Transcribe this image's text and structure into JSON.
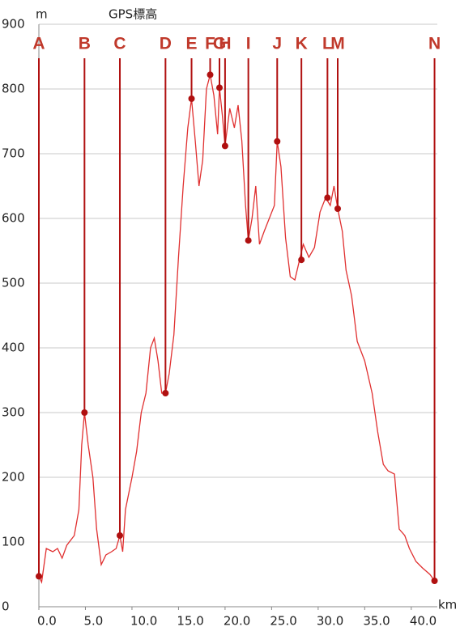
{
  "chart_data": {
    "type": "line",
    "title": "GPS標高",
    "y_label": "m",
    "x_label": "km",
    "xlim": [
      0,
      42.8
    ],
    "ylim": [
      0,
      900
    ],
    "xticks": [
      {
        "value": 0,
        "label": "0.0"
      },
      {
        "value": 5,
        "label": "5.0"
      },
      {
        "value": 10,
        "label": "10.0"
      },
      {
        "value": 15,
        "label": "15.0"
      },
      {
        "value": 20,
        "label": "20.0"
      },
      {
        "value": 25,
        "label": "25.0"
      },
      {
        "value": 30,
        "label": "30.0"
      },
      {
        "value": 35,
        "label": "35.0"
      },
      {
        "value": 40,
        "label": "40.0"
      }
    ],
    "yticks": [
      0,
      100,
      200,
      300,
      400,
      500,
      600,
      700,
      800,
      900
    ],
    "grid": true,
    "series": [
      {
        "color": "#e03030",
        "x": [
          0,
          0.3,
          0.8,
          1.5,
          2.0,
          2.5,
          3.0,
          3.8,
          4.3,
          4.6,
          4.9,
          5.3,
          5.8,
          6.2,
          6.7,
          7.2,
          7.8,
          8.3,
          8.7,
          9.0,
          9.3,
          10,
          10.5,
          11,
          11.5,
          12.0,
          12.4,
          12.8,
          13.2,
          13.6,
          14.0,
          14.5,
          15.0,
          15.5,
          16.0,
          16.4,
          16.8,
          17.2,
          17.6,
          18.0,
          18.4,
          18.8,
          19.2,
          19.4,
          19.7,
          20.0,
          20.5,
          21.0,
          21.4,
          21.8,
          22.2,
          22.5,
          22.9,
          23.3,
          23.7,
          24.2,
          25.3,
          25.6,
          26.0,
          26.5,
          27.0,
          27.5,
          28.0,
          28.4,
          29.0,
          29.6,
          30.2,
          30.8,
          31.3,
          31.7,
          32.1,
          32.6,
          33.0,
          33.6,
          34.2,
          35.0,
          35.8,
          36.4,
          37.0,
          37.5,
          38.2,
          38.7,
          39.3,
          39.8,
          40.5,
          41.2,
          42.0,
          42.5
        ],
        "values": [
          47,
          38,
          90,
          85,
          90,
          75,
          95,
          110,
          150,
          250,
          300,
          250,
          200,
          120,
          65,
          80,
          85,
          90,
          110,
          85,
          150,
          200,
          240,
          300,
          330,
          400,
          415,
          380,
          330,
          330,
          360,
          420,
          540,
          650,
          740,
          785,
          720,
          650,
          690,
          800,
          822,
          790,
          730,
          802,
          760,
          712,
          770,
          740,
          775,
          720,
          620,
          566,
          600,
          650,
          560,
          580,
          620,
          719,
          680,
          570,
          510,
          505,
          536,
          560,
          540,
          555,
          610,
          632,
          620,
          650,
          615,
          580,
          520,
          480,
          410,
          380,
          330,
          270,
          220,
          210,
          205,
          120,
          110,
          90,
          70,
          60,
          50,
          40
        ]
      }
    ],
    "waypoints": {
      "color": "#b01010",
      "labels": [
        "A",
        "B",
        "C",
        "D",
        "E",
        "F",
        "G",
        "H",
        "I",
        "J",
        "K",
        "L",
        "M",
        "N"
      ],
      "x": [
        0,
        4.9,
        8.7,
        13.6,
        16.4,
        18.4,
        19.4,
        20.0,
        22.5,
        25.6,
        28.2,
        31.0,
        32.1,
        42.5
      ],
      "values": [
        47,
        300,
        110,
        330,
        785,
        822,
        802,
        712,
        566,
        719,
        536,
        632,
        615,
        40
      ]
    }
  }
}
